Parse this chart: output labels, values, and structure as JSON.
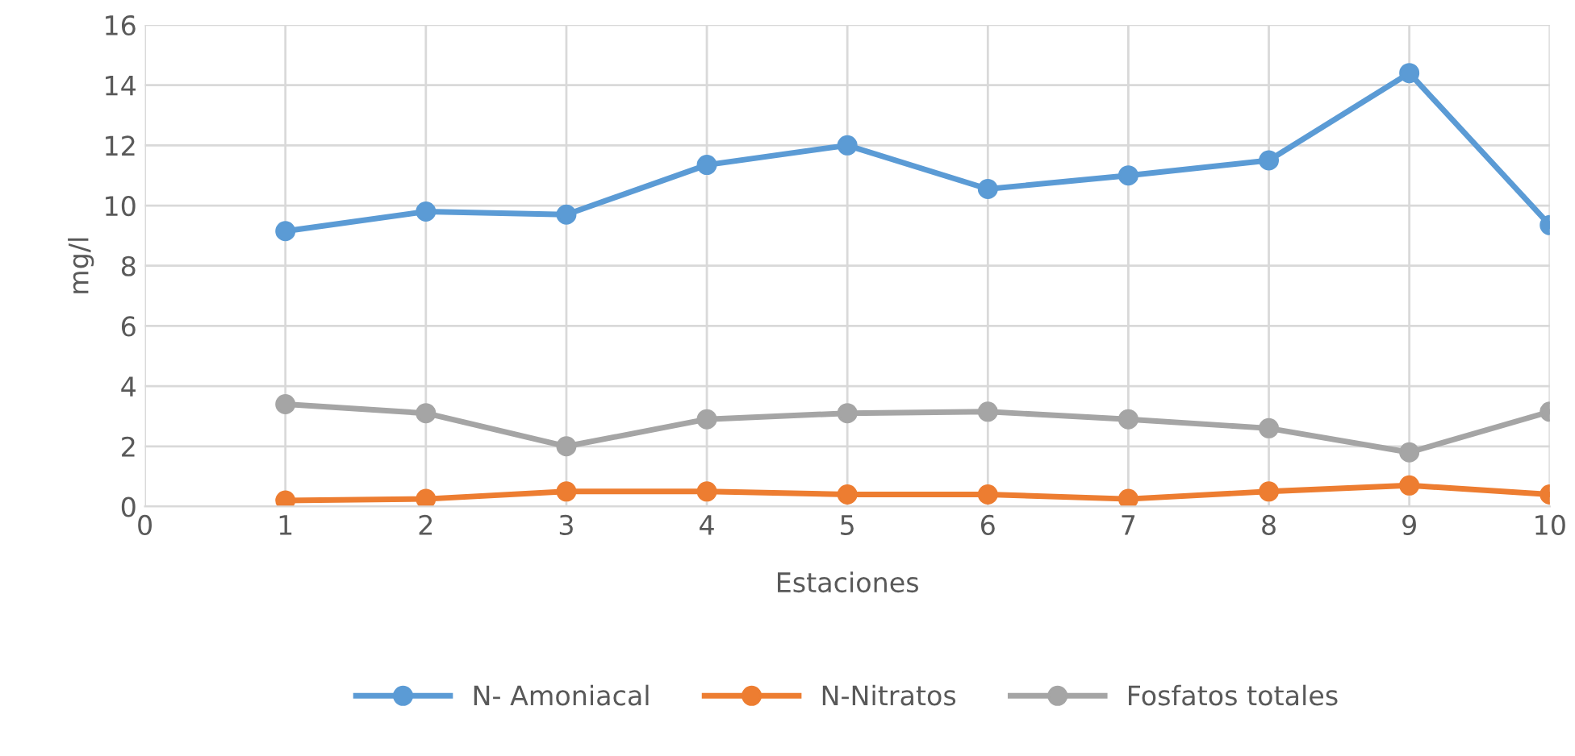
{
  "chart_data": {
    "type": "line",
    "xlabel": "Estaciones",
    "ylabel": "mg/l",
    "x": [
      1,
      2,
      3,
      4,
      5,
      6,
      7,
      8,
      9,
      10
    ],
    "series": [
      {
        "name": "N- Amoniacal",
        "color": "#5b9bd5",
        "values": [
          9.15,
          9.8,
          9.7,
          11.35,
          12.0,
          10.55,
          11.0,
          11.5,
          14.4,
          9.35
        ]
      },
      {
        "name": "N-Nitratos",
        "color": "#ed7d31",
        "values": [
          0.2,
          0.25,
          0.5,
          0.5,
          0.4,
          0.4,
          0.25,
          0.5,
          0.7,
          0.4
        ]
      },
      {
        "name": "Fosfatos totales",
        "color": "#a5a5a5",
        "values": [
          3.4,
          3.1,
          2.0,
          2.9,
          3.1,
          3.15,
          2.9,
          2.6,
          1.8,
          3.15
        ]
      }
    ],
    "xlim": [
      0,
      10
    ],
    "xticks": [
      0,
      1,
      2,
      3,
      4,
      5,
      6,
      7,
      8,
      9,
      10
    ],
    "ylim": [
      0,
      16
    ],
    "yticks": [
      0,
      2,
      4,
      6,
      8,
      10,
      12,
      14,
      16
    ],
    "grid": true,
    "legend": "bottom",
    "marker": "circle",
    "line_style": "solid"
  }
}
